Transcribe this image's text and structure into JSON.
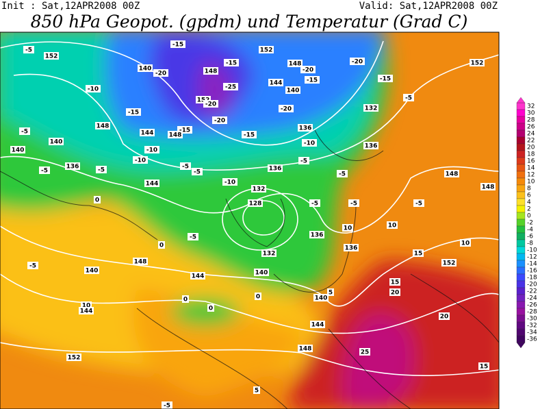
{
  "header": {
    "init": "Init : Sat,12APR2008 00Z",
    "valid": "Valid: Sat,12APR2008 00Z",
    "title": "850 hPa Geopot. (gpdm) und Temperatur (Grad C)"
  },
  "map": {
    "labels": [
      "-5",
      "152",
      "140",
      "-20",
      "-15",
      "148",
      "-15",
      "-25",
      "152",
      "-20",
      "-20",
      "-15",
      "148",
      "144",
      "-15",
      "-10",
      "148",
      "-5",
      "140",
      "140",
      "-10",
      "-10",
      "-5",
      "136",
      "-5",
      "-5",
      "-5",
      "144",
      "-10",
      "152",
      "148",
      "-20",
      "-15",
      "-20",
      "144",
      "140",
      "-20",
      "-15",
      "136",
      "-10",
      "-5",
      "136",
      "132",
      "128",
      "-5",
      "-5",
      "136",
      "132",
      "-15",
      "-5",
      "148",
      "148",
      "152",
      "-5",
      "-5",
      "-5",
      "0",
      "0",
      "10",
      "10",
      "136",
      "136",
      "132",
      "148",
      "140",
      "144",
      "140",
      "15",
      "152",
      "10",
      "-5",
      "10",
      "144",
      "0",
      "0",
      "0",
      "5",
      "140",
      "15",
      "20",
      "144",
      "148",
      "152",
      "20",
      "25",
      "15",
      "-5",
      "5"
    ]
  },
  "colorbar": {
    "values": [
      32,
      30,
      28,
      26,
      24,
      22,
      20,
      18,
      16,
      14,
      12,
      10,
      8,
      6,
      4,
      2,
      0,
      -2,
      -4,
      -6,
      -8,
      -10,
      -12,
      -14,
      -16,
      -18,
      -20,
      -22,
      -24,
      -26,
      -28,
      -30,
      -32,
      -34,
      -36
    ],
    "colors": [
      "#ff33cc",
      "#ff00cc",
      "#e6009f",
      "#cc0088",
      "#b30070",
      "#a8002e",
      "#b3131b",
      "#cc2222",
      "#dd3a1a",
      "#e85512",
      "#f0700f",
      "#f58a0a",
      "#f9a50f",
      "#fbc01a",
      "#fde02a",
      "#f4f000",
      "#a5e61e",
      "#55d22a",
      "#22c040",
      "#10b060",
      "#00c8a0",
      "#00d8d8",
      "#00b8f0",
      "#1a90ff",
      "#2a6cff",
      "#3a48ff",
      "#4a32e6",
      "#5a20cc",
      "#7020c0",
      "#8818b0",
      "#9810a0",
      "#7a0c90",
      "#600880",
      "#500670",
      "#400460"
    ]
  }
}
